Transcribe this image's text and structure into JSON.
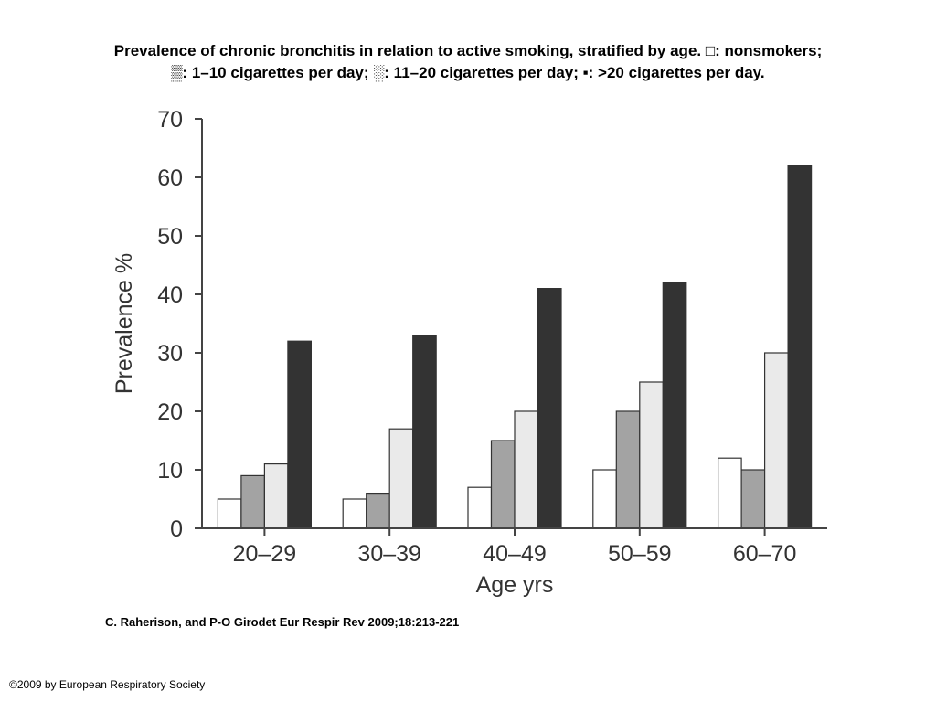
{
  "title_line1": "Prevalence of chronic bronchitis in relation to active smoking, stratified by age. □: nonsmokers;",
  "title_line2": "▒: 1–10 cigarettes per day; ░: 11–20 cigarettes per day; ▪: >20 cigarettes per day.",
  "citation": "C. Raherison, and P-O Girodet Eur Respir Rev 2009;18:213-221",
  "copyright": "©2009 by European Respiratory Society",
  "chart_data": {
    "type": "bar",
    "xlabel": "Age yrs",
    "ylabel": "Prevalence %",
    "ylim": [
      0,
      70
    ],
    "yticks": [
      0,
      10,
      20,
      30,
      40,
      50,
      60,
      70
    ],
    "grid": false,
    "legend": "in title",
    "categories": [
      "20–29",
      "30–39",
      "40–49",
      "50–59",
      "60–70"
    ],
    "series": [
      {
        "name": "nonsmokers",
        "color": "#ffffff",
        "values": [
          5,
          5,
          7,
          10,
          12
        ]
      },
      {
        "name": "1–10 cigarettes per day",
        "color": "#a3a3a3",
        "values": [
          9,
          6,
          15,
          20,
          10
        ]
      },
      {
        "name": "11–20 cigarettes per day",
        "color": "#eaeaea",
        "values": [
          11,
          17,
          20,
          25,
          30
        ]
      },
      {
        "name": ">20 cigarettes per day",
        "color": "#333333",
        "values": [
          32,
          33,
          41,
          42,
          62
        ]
      }
    ]
  }
}
